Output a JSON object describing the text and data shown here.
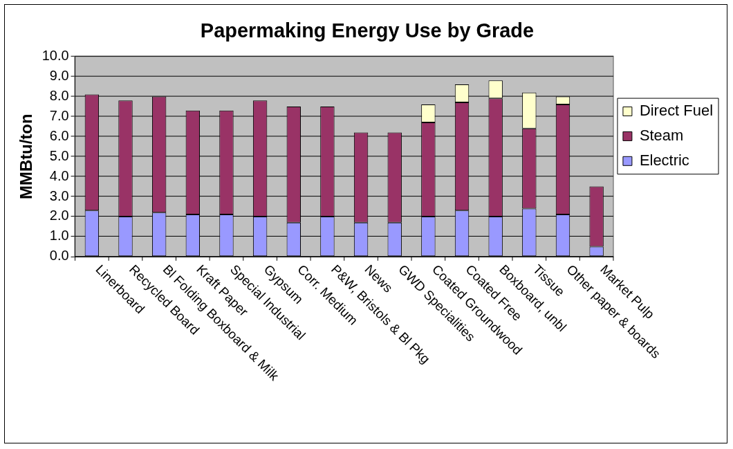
{
  "chart_data": {
    "type": "bar",
    "title": "Papermaking Energy Use by Grade",
    "ylabel": "MMBtu/ton",
    "categories": [
      "Linerboard",
      "Recycled Board",
      "Bl Folding Boxboard & Milk",
      "Kraft Paper",
      "Special Industrial",
      "Gypsum",
      "Corr. Medium",
      "P&W, Bristols & Bl Pkg",
      "News",
      "GWD Specialities",
      "Coated Groundwood",
      "Coated Free",
      "Boxboard, unbl",
      "Tissue",
      "Other paper & boards",
      "Market Pulp"
    ],
    "stacked": true,
    "series": [
      {
        "name": "Electric",
        "color": "#9999ff",
        "values": [
          2.3,
          2.0,
          2.2,
          2.1,
          2.1,
          2.0,
          1.7,
          2.0,
          1.7,
          1.7,
          2.0,
          2.3,
          2.0,
          2.4,
          2.1,
          0.5
        ]
      },
      {
        "name": "Steam",
        "color": "#993366",
        "values": [
          5.8,
          5.8,
          5.8,
          5.2,
          5.2,
          5.8,
          5.8,
          5.5,
          4.5,
          4.5,
          4.7,
          5.4,
          5.9,
          4.0,
          5.5,
          3.0
        ]
      },
      {
        "name": "Direct Fuel",
        "color": "#ffffcc",
        "values": [
          null,
          null,
          null,
          null,
          null,
          null,
          null,
          null,
          null,
          null,
          0.9,
          0.9,
          0.9,
          1.8,
          0.4,
          null
        ]
      }
    ],
    "ylim": [
      0,
      10
    ],
    "yticks": [
      {
        "value": 0,
        "label": "0.0"
      },
      {
        "value": 1,
        "label": "1.0"
      },
      {
        "value": 2,
        "label": "2.0"
      },
      {
        "value": 3,
        "label": "3.0"
      },
      {
        "value": 4,
        "label": "4.0"
      },
      {
        "value": 5,
        "label": "5.0"
      },
      {
        "value": 6,
        "label": "6.0"
      },
      {
        "value": 7,
        "label": "7.0"
      },
      {
        "value": 8,
        "label": "8.0"
      },
      {
        "value": 9,
        "label": "9.0"
      },
      {
        "value": 10,
        "label": "10.0"
      }
    ],
    "grid": "y",
    "legend": "right"
  }
}
